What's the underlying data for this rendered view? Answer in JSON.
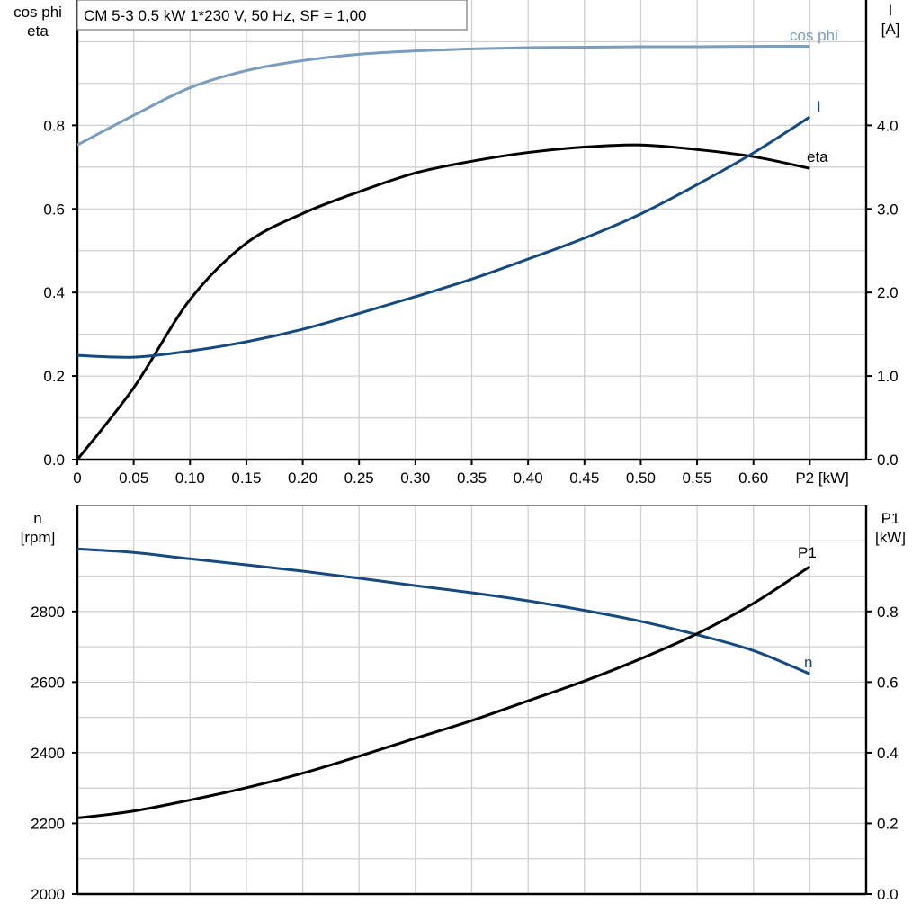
{
  "chart_data": [
    {
      "type": "line",
      "title": "CM 5-3   0.5 kW   1*230 V, 50 Hz, SF = 1,00",
      "xlabel": "P2 [kW]",
      "x_tick_labels": [
        "0",
        "0.05",
        "0.10",
        "0.15",
        "0.20",
        "0.25",
        "0.30",
        "0.35",
        "0.40",
        "0.45",
        "0.50",
        "0.55",
        "0.60"
      ],
      "xlim": [
        0,
        0.7
      ],
      "ylabel_left": [
        "cos phi",
        "eta"
      ],
      "ylim_left": [
        0,
        1.1
      ],
      "y_tick_labels_left": [
        "0.0",
        "0.2",
        "0.4",
        "0.6",
        "0.8"
      ],
      "ylabel_right": [
        "I",
        "[A]"
      ],
      "ylim_right": [
        0,
        5.5
      ],
      "y_tick_labels_right": [
        "0.0",
        "1.0",
        "2.0",
        "3.0",
        "4.0"
      ],
      "grid": true,
      "x": [
        0,
        0.05,
        0.1,
        0.15,
        0.2,
        0.25,
        0.3,
        0.35,
        0.4,
        0.45,
        0.5,
        0.55,
        0.6,
        0.65
      ],
      "series": [
        {
          "name": "cos phi",
          "axis": "left",
          "color": "#7a9dbf",
          "values": [
            0.753,
            0.824,
            0.89,
            0.931,
            0.955,
            0.97,
            0.978,
            0.983,
            0.986,
            0.987,
            0.988,
            0.988,
            0.989,
            0.989
          ]
        },
        {
          "name": "eta",
          "axis": "left",
          "color": "#000000",
          "values": [
            0,
            0.172,
            0.383,
            0.518,
            0.589,
            0.641,
            0.686,
            0.714,
            0.735,
            0.748,
            0.753,
            0.742,
            0.725,
            0.697
          ]
        },
        {
          "name": "I",
          "axis": "right",
          "color": "#154a80",
          "values": [
            1.247,
            1.226,
            1.3,
            1.41,
            1.56,
            1.75,
            1.95,
            2.16,
            2.4,
            2.65,
            2.94,
            3.29,
            3.67,
            4.1
          ]
        }
      ]
    },
    {
      "type": "line",
      "xlim": [
        0,
        0.7
      ],
      "ylabel_left": [
        "n",
        "[rpm]"
      ],
      "ylim_left": [
        2000,
        3100
      ],
      "y_tick_labels_left": [
        "2000",
        "2200",
        "2400",
        "2600",
        "2800"
      ],
      "ylabel_right": [
        "P1",
        "[kW]"
      ],
      "ylim_right": [
        0,
        1.1
      ],
      "y_tick_labels_right": [
        "0.0",
        "0.2",
        "0.4",
        "0.6",
        "0.8"
      ],
      "grid": true,
      "x": [
        0,
        0.05,
        0.1,
        0.15,
        0.2,
        0.25,
        0.3,
        0.35,
        0.4,
        0.45,
        0.5,
        0.55,
        0.6,
        0.65
      ],
      "series": [
        {
          "name": "n",
          "axis": "left",
          "color": "#154a80",
          "values": [
            2977,
            2967,
            2949,
            2932,
            2914,
            2894,
            2873,
            2853,
            2830,
            2803,
            2772,
            2734,
            2689,
            2623
          ]
        },
        {
          "name": "P1",
          "axis": "right",
          "color": "#000000",
          "values": [
            0.215,
            0.235,
            0.266,
            0.301,
            0.342,
            0.39,
            0.441,
            0.491,
            0.547,
            0.603,
            0.666,
            0.737,
            0.823,
            0.927
          ]
        }
      ]
    }
  ]
}
